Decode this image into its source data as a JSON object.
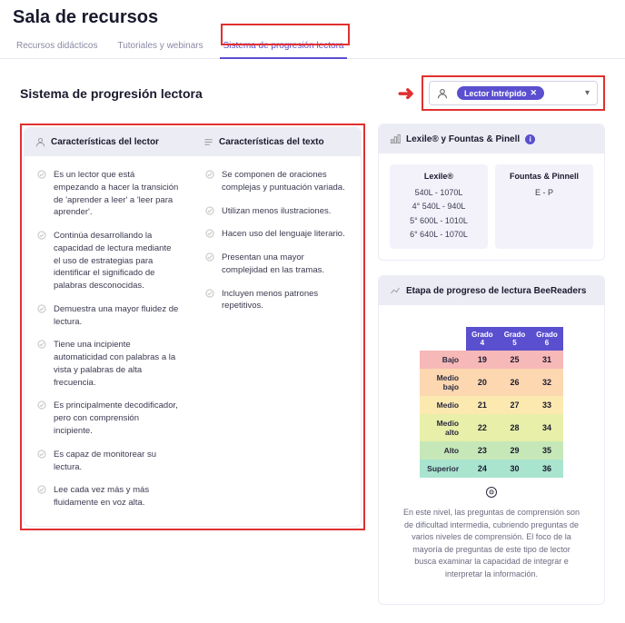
{
  "title": "Sala de recursos",
  "tabs": [
    {
      "label": "Recursos didácticos"
    },
    {
      "label": "Tutoriales y webinars"
    },
    {
      "label": "Sistema de progresión lectora"
    }
  ],
  "card_title": "Sistema de progresión lectora",
  "selector": {
    "chip_label": "Lector Intrépido",
    "chip_x": "✕"
  },
  "left": {
    "col1_title": "Características del lector",
    "col2_title": "Características del texto",
    "reader_points": [
      "Es un lector que está empezando a hacer la transición de 'aprender a leer' a 'leer para aprender'.",
      "Continúa desarrollando la capacidad de lectura mediante el uso de estrategias para identificar el significado de palabras desconocidas.",
      "Demuestra una mayor fluidez de lectura.",
      "Tiene una incipiente automaticidad con palabras a la vista y palabras de alta frecuencia.",
      "Es principalmente decodificador, pero con comprensión incipiente.",
      "Es capaz de monitorear su lectura.",
      "Lee cada vez más y más fluidamente en voz alta."
    ],
    "text_points": [
      "Se componen de oraciones complejas y puntuación variada.",
      "Utilizan menos ilustraciones.",
      "Hacen uso del lenguaje literario.",
      "Presentan una mayor complejidad en las tramas.",
      "Incluyen menos patrones repetitivos."
    ]
  },
  "lexile": {
    "title": "Lexile® y Fountas & Pinell",
    "box1_title": "Lexile®",
    "box2_title": "Fountas & Pinnell",
    "box1_rows": [
      "540L - 1070L",
      "4° 540L - 940L",
      "5° 600L - 1010L",
      "6° 640L - 1070L"
    ],
    "box2_rows": [
      "E - P"
    ]
  },
  "progress": {
    "title": "Etapa de progreso de lectura BeeReaders",
    "grades": [
      "Grado 4",
      "Grado 5",
      "Grado 6"
    ],
    "rows": [
      {
        "label": "Bajo",
        "vals": [
          19,
          25,
          31
        ],
        "bg": "#f7b8b8"
      },
      {
        "label": "Medio bajo",
        "vals": [
          20,
          26,
          32
        ],
        "bg": "#fcd7b0"
      },
      {
        "label": "Medio",
        "vals": [
          21,
          27,
          33
        ],
        "bg": "#fce9b0"
      },
      {
        "label": "Medio alto",
        "vals": [
          22,
          28,
          34
        ],
        "bg": "#e7efa8"
      },
      {
        "label": "Alto",
        "vals": [
          23,
          29,
          35
        ],
        "bg": "#c6e8b8"
      },
      {
        "label": "Superior",
        "vals": [
          24,
          30,
          36
        ],
        "bg": "#a9e4cf"
      }
    ],
    "desc": "En este nivel, las preguntas de comprensión son de dificultad intermedia, cubriendo preguntas de varios niveles de comprensión. El foco de la mayoría de preguntas de este tipo de lector busca examinar la capacidad de integrar e interpretar la información."
  },
  "colors": {
    "accent": "#5a4fcf",
    "highlight": "#e03030"
  }
}
